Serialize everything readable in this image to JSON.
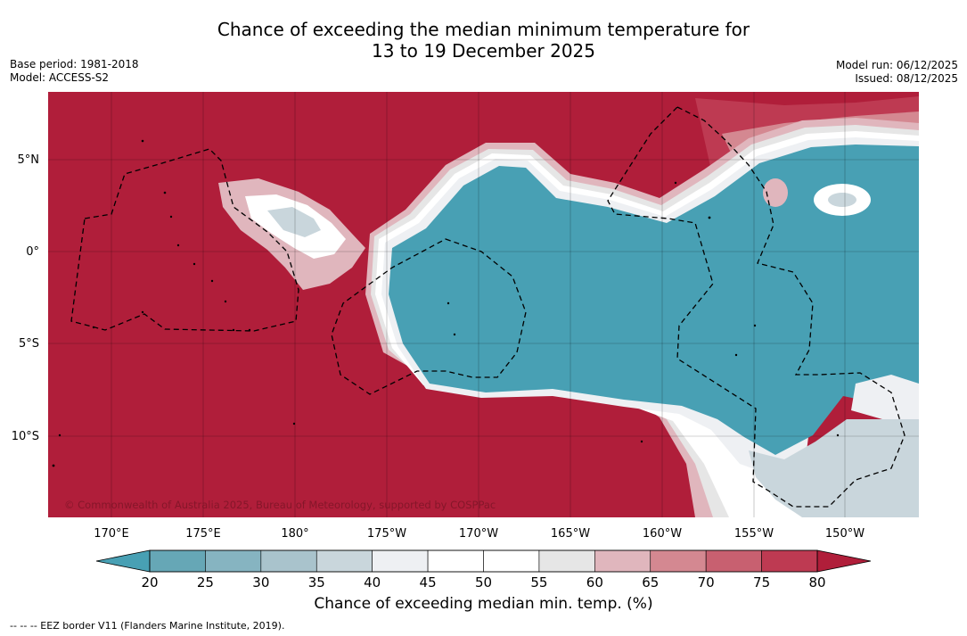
{
  "title": {
    "line1": "Chance of exceeding the median minimum temperature for",
    "line2": "13 to 19 December 2025"
  },
  "meta": {
    "base_period": "Base period: 1981-2018",
    "model": "Model: ACCESS-S2",
    "model_run": "Model run: 06/12/2025",
    "issued": "Issued: 08/12/2025"
  },
  "map": {
    "region": "Central Pacific",
    "lat_labels": [
      "5°N",
      "0°",
      "5°S",
      "10°S"
    ],
    "lon_labels": [
      "170°E",
      "175°E",
      "180°",
      "175°W",
      "170°W",
      "165°W",
      "160°W",
      "155°W",
      "150°W"
    ],
    "copyright": "© Commonwealth of Australia 2025, Bureau of Meteorology, supported by COSPPac",
    "colors": {
      "above_80": "#b01e3a",
      "band_75_80": "#be3a52",
      "band_70_75": "#c86070",
      "band_65_70": "#d48891",
      "band_60_65": "#e0b6bd",
      "band_55_60": "#e6e6e6",
      "band_45_55": "#ffffff",
      "band_40_45": "#eef0f3",
      "band_35_40": "#c9d6dc",
      "band_30_35": "#a9c3cc",
      "band_25_30": "#86b4c1",
      "band_20_25": "#66a7b6",
      "below_20": "#48a0b4"
    }
  },
  "colorbar": {
    "ticks": [
      "20",
      "25",
      "30",
      "35",
      "40",
      "45",
      "50",
      "55",
      "60",
      "65",
      "70",
      "75",
      "80"
    ],
    "colors": [
      "#66a7b6",
      "#86b4c1",
      "#a9c3cc",
      "#c9d6dc",
      "#eef0f3",
      "#ffffff",
      "#ffffff",
      "#e6e6e6",
      "#e0b6bd",
      "#d48891",
      "#c86070",
      "#be3a52"
    ],
    "low_extend_color": "#48a0b4",
    "high_extend_color": "#b01e3a",
    "label": "Chance of exceeding median min. temp. (%)"
  },
  "footnote": "-- -- -- EEZ border V11 (Flanders Marine Institute, 2019)."
}
